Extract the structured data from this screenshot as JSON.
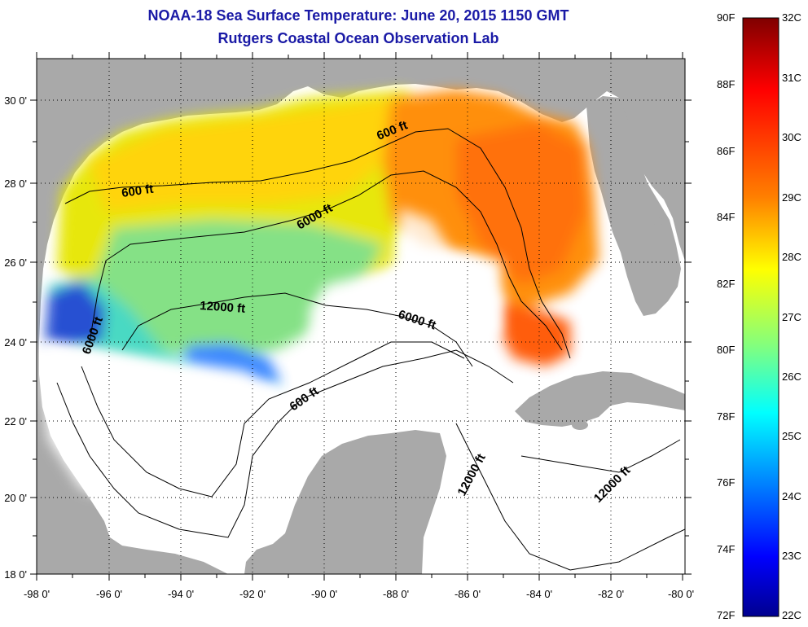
{
  "header": {
    "title": "NOAA-18 Sea Surface Temperature:  June 20, 2015 1150 GMT",
    "subtitle": "Rutgers Coastal Ocean Observation Lab"
  },
  "map": {
    "region": "Gulf of Mexico",
    "lon_ticks": [
      "-98 0'",
      "-96 0'",
      "-94 0'",
      "-92 0'",
      "-90 0'",
      "-88 0'",
      "-86 0'",
      "-84 0'",
      "-82 0'",
      "-80 0'"
    ],
    "lat_ticks": [
      "30 0'",
      "28 0'",
      "26 0'",
      "24 0'",
      "22 0'",
      "20 0'",
      "18 0'"
    ],
    "contour_labels": [
      "600 ft",
      "600 ft",
      "600 ft",
      "6000 ft",
      "6000 ft",
      "6000 ft",
      "12000 ft",
      "12000 ft",
      "12000 ft"
    ],
    "land_color": "#a9a9a9",
    "ocean_nodata_color": "#ffffff",
    "grid": true
  },
  "colorbar": {
    "fahrenheit_labels": [
      "90F",
      "88F",
      "86F",
      "84F",
      "82F",
      "80F",
      "78F",
      "76F",
      "74F",
      "72F"
    ],
    "celsius_labels": [
      "32C",
      "31C",
      "30C",
      "29C",
      "28C",
      "27C",
      "26C",
      "25C",
      "24C",
      "23C",
      "22C"
    ],
    "range_c": [
      22,
      32
    ],
    "colors": [
      "#7f0000",
      "#ff0000",
      "#ff8000",
      "#ffff00",
      "#80ff80",
      "#00ffff",
      "#0080ff",
      "#0000ff",
      "#00008f"
    ]
  }
}
